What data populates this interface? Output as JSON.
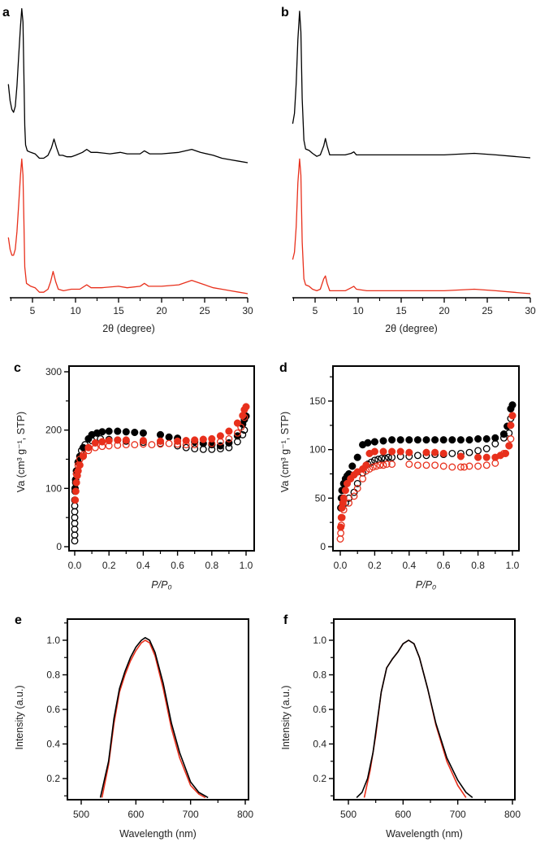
{
  "colors": {
    "black_series": "#000000",
    "red_series": "#e8301c"
  },
  "chart_data": [
    {
      "panel": "a",
      "type": "line",
      "xlabel": "2θ (degree)",
      "ylabel": "",
      "xlim": [
        2.2,
        30
      ],
      "xticks": [
        5,
        10,
        15,
        20,
        25,
        30
      ],
      "yaxis": "none (stacked, a.u.)",
      "series": [
        {
          "color": "#000000",
          "x": [
            2.2,
            2.4,
            2.6,
            2.8,
            3.0,
            3.2,
            3.4,
            3.6,
            3.75,
            3.9,
            4.0,
            4.1,
            4.2,
            4.4,
            4.8,
            5.3,
            5.8,
            6.3,
            6.8,
            7.2,
            7.5,
            7.8,
            8.1,
            8.5,
            9.0,
            9.5,
            10,
            10.8,
            11.3,
            11.8,
            12.5,
            14,
            15.2,
            16,
            17.5,
            18,
            18.6,
            20,
            22,
            23.5,
            24.5,
            26,
            27,
            28,
            29,
            30
          ],
          "y": [
            0.53,
            0.42,
            0.36,
            0.34,
            0.38,
            0.52,
            0.72,
            0.92,
            1.04,
            0.95,
            0.6,
            0.25,
            0.12,
            0.08,
            0.07,
            0.06,
            0.03,
            0.03,
            0.05,
            0.1,
            0.16,
            0.1,
            0.05,
            0.05,
            0.04,
            0.04,
            0.05,
            0.07,
            0.09,
            0.07,
            0.07,
            0.06,
            0.07,
            0.06,
            0.06,
            0.08,
            0.06,
            0.06,
            0.07,
            0.09,
            0.07,
            0.05,
            0.03,
            0.02,
            0.01,
            0
          ]
        },
        {
          "color": "#e8301c",
          "x": [
            2.2,
            2.4,
            2.6,
            2.8,
            3.0,
            3.2,
            3.4,
            3.6,
            3.75,
            3.9,
            4.0,
            4.1,
            4.3,
            4.8,
            5.3,
            5.8,
            6.3,
            6.8,
            7.1,
            7.4,
            7.7,
            8.0,
            8.6,
            9.5,
            10.5,
            11.3,
            11.8,
            13,
            15,
            16,
            17.5,
            18,
            18.5,
            20,
            22,
            23.5,
            24.5,
            26,
            27,
            28,
            29,
            30
          ],
          "y": [
            0.38,
            0.3,
            0.26,
            0.26,
            0.3,
            0.42,
            0.6,
            0.8,
            0.91,
            0.8,
            0.5,
            0.18,
            0.07,
            0.05,
            0.04,
            0.01,
            0.01,
            0.03,
            0.08,
            0.15,
            0.08,
            0.03,
            0.02,
            0.03,
            0.03,
            0.06,
            0.04,
            0.04,
            0.05,
            0.04,
            0.05,
            0.07,
            0.05,
            0.05,
            0.06,
            0.09,
            0.07,
            0.04,
            0.03,
            0.02,
            0.01,
            0
          ]
        }
      ]
    },
    {
      "panel": "b",
      "type": "line",
      "xlabel": "2θ (degree)",
      "ylabel": "",
      "xlim": [
        2.3,
        30
      ],
      "xticks": [
        5,
        10,
        15,
        20,
        25,
        30
      ],
      "yaxis": "none (stacked, a.u.)",
      "series": [
        {
          "color": "#000000",
          "x": [
            2.4,
            2.6,
            2.8,
            3.0,
            3.2,
            3.35,
            3.5,
            3.7,
            3.9,
            4.3,
            4.7,
            5.2,
            5.6,
            6.0,
            6.2,
            6.4,
            6.7,
            7.5,
            8.5,
            9.2,
            9.5,
            9.8,
            11,
            15,
            20,
            23.5,
            26,
            28,
            30
          ],
          "y": [
            0.23,
            0.3,
            0.5,
            0.8,
            0.99,
            0.85,
            0.4,
            0.12,
            0.06,
            0.05,
            0.03,
            0.01,
            0.02,
            0.08,
            0.13,
            0.08,
            0.02,
            0.02,
            0.02,
            0.03,
            0.04,
            0.02,
            0.02,
            0.02,
            0.02,
            0.03,
            0.02,
            0.01,
            0
          ]
        },
        {
          "color": "#e8301c",
          "x": [
            2.4,
            2.6,
            2.8,
            3.0,
            3.2,
            3.35,
            3.5,
            3.7,
            3.9,
            4.3,
            4.7,
            5.2,
            5.6,
            6.0,
            6.2,
            6.4,
            6.7,
            7.5,
            8.5,
            9.2,
            9.5,
            9.8,
            11,
            15,
            20,
            23.5,
            26,
            28,
            30
          ],
          "y": [
            0.23,
            0.28,
            0.45,
            0.75,
            0.91,
            0.8,
            0.35,
            0.1,
            0.06,
            0.05,
            0.03,
            0.02,
            0.03,
            0.1,
            0.12,
            0.07,
            0.02,
            0.02,
            0.02,
            0.04,
            0.05,
            0.03,
            0.02,
            0.02,
            0.02,
            0.03,
            0.02,
            0.01,
            0
          ]
        }
      ]
    },
    {
      "panel": "c",
      "type": "scatter",
      "xlabel": "P/P₀",
      "ylabel": "Va (cm³ g⁻¹, STP)",
      "xlim": [
        -0.02,
        1.03
      ],
      "ylim": [
        0,
        300
      ],
      "xticks": [
        "0.0",
        "0.2",
        "0.4",
        "0.6",
        "0.8",
        "1.0"
      ],
      "yticks": [
        "0",
        "100",
        "200",
        "300"
      ],
      "series": [
        {
          "color": "#000000",
          "marker": "filled",
          "x": [
            0.002,
            0.005,
            0.01,
            0.02,
            0.03,
            0.05,
            0.08,
            0.1,
            0.13,
            0.16,
            0.2,
            0.25,
            0.3,
            0.35,
            0.4,
            0.5,
            0.55,
            0.6,
            0.7,
            0.75,
            0.8,
            0.85,
            0.9,
            0.95,
            0.98,
            0.99,
            1.0
          ],
          "y": [
            100,
            115,
            130,
            145,
            155,
            170,
            185,
            192,
            195,
            197,
            198,
            198,
            197,
            196,
            195,
            192,
            188,
            186,
            180,
            177,
            175,
            173,
            178,
            190,
            210,
            218,
            224
          ]
        },
        {
          "color": "#000000",
          "marker": "open",
          "x": [
            0,
            0,
            0,
            0,
            0,
            0,
            0,
            0,
            0.002,
            0.005,
            0.01,
            0.02,
            0.04,
            0.06,
            0.1,
            0.15,
            0.2,
            0.25,
            0.3,
            0.4,
            0.5,
            0.6,
            0.65,
            0.7,
            0.75,
            0.8,
            0.85,
            0.9,
            0.95,
            0.98,
            0.99
          ],
          "y": [
            10,
            20,
            30,
            40,
            50,
            60,
            70,
            80,
            95,
            110,
            125,
            145,
            165,
            175,
            182,
            185,
            184,
            183,
            181,
            179,
            177,
            173,
            170,
            168,
            167,
            167,
            168,
            170,
            180,
            192,
            200
          ]
        },
        {
          "color": "#e8301c",
          "marker": "filled",
          "x": [
            0.003,
            0.006,
            0.01,
            0.015,
            0.02,
            0.03,
            0.05,
            0.08,
            0.12,
            0.16,
            0.2,
            0.25,
            0.3,
            0.4,
            0.5,
            0.6,
            0.65,
            0.7,
            0.75,
            0.8,
            0.85,
            0.9,
            0.95,
            0.98,
            0.99,
            1.0
          ],
          "y": [
            80,
            95,
            110,
            122,
            130,
            140,
            155,
            170,
            178,
            180,
            182,
            183,
            183,
            182,
            181,
            181,
            182,
            183,
            184,
            185,
            190,
            198,
            212,
            225,
            235,
            240
          ]
        },
        {
          "color": "#e8301c",
          "marker": "open",
          "x": [
            0.01,
            0.02,
            0.03,
            0.05,
            0.08,
            0.12,
            0.16,
            0.2,
            0.25,
            0.3,
            0.35,
            0.4,
            0.45,
            0.5,
            0.55,
            0.6,
            0.65,
            0.7,
            0.8,
            0.85,
            0.9,
            0.95,
            0.97,
            0.99
          ],
          "y": [
            125,
            140,
            150,
            158,
            165,
            170,
            172,
            173,
            174,
            175,
            175,
            176,
            175,
            176,
            177,
            176,
            175,
            175,
            177,
            180,
            185,
            195,
            205,
            222
          ]
        }
      ]
    },
    {
      "panel": "d",
      "type": "scatter",
      "xlabel": "P/P₀",
      "ylabel": "Va (cm³ g⁻¹, STP)",
      "xlim": [
        -0.02,
        1.03
      ],
      "ylim": [
        0,
        186
      ],
      "xticks": [
        "0.0",
        "0.2",
        "0.4",
        "0.6",
        "0.8",
        "1.0"
      ],
      "yticks": [
        "0",
        "50",
        "100",
        "150"
      ],
      "series": [
        {
          "color": "#000000",
          "marker": "filled",
          "x": [
            0.003,
            0.006,
            0.01,
            0.02,
            0.03,
            0.04,
            0.05,
            0.07,
            0.1,
            0.13,
            0.16,
            0.2,
            0.25,
            0.3,
            0.35,
            0.4,
            0.45,
            0.5,
            0.55,
            0.6,
            0.65,
            0.7,
            0.75,
            0.8,
            0.85,
            0.9,
            0.95,
            0.97,
            0.99,
            1.0
          ],
          "y": [
            40,
            50,
            58,
            65,
            70,
            73,
            75,
            83,
            92,
            105,
            107,
            108,
            109,
            110,
            110,
            110,
            110,
            110,
            110,
            110,
            110,
            110,
            110,
            111,
            111,
            112,
            116,
            124,
            142,
            146
          ]
        },
        {
          "color": "#000000",
          "marker": "open",
          "x": [
            0.03,
            0.05,
            0.08,
            0.1,
            0.13,
            0.16,
            0.18,
            0.2,
            0.22,
            0.24,
            0.26,
            0.28,
            0.3,
            0.35,
            0.4,
            0.45,
            0.5,
            0.55,
            0.6,
            0.65,
            0.7,
            0.75,
            0.8,
            0.85,
            0.9,
            0.95,
            0.98,
            0.99
          ],
          "y": [
            45,
            50,
            56,
            65,
            76,
            85,
            87,
            89,
            90,
            91,
            91,
            92,
            92,
            93,
            93,
            94,
            94,
            95,
            95,
            96,
            96,
            97,
            99,
            101,
            106,
            112,
            117,
            132
          ]
        },
        {
          "color": "#e8301c",
          "marker": "filled",
          "x": [
            0.003,
            0.006,
            0.01,
            0.015,
            0.02,
            0.03,
            0.04,
            0.06,
            0.08,
            0.1,
            0.13,
            0.15,
            0.17,
            0.2,
            0.25,
            0.3,
            0.35,
            0.4,
            0.5,
            0.55,
            0.6,
            0.7,
            0.8,
            0.85,
            0.9,
            0.93,
            0.96,
            0.98,
            0.99,
            1.0
          ],
          "y": [
            20,
            30,
            40,
            45,
            50,
            58,
            65,
            70,
            74,
            77,
            80,
            84,
            96,
            98,
            98,
            98,
            98,
            97,
            97,
            97,
            96,
            93,
            92,
            92,
            92,
            94,
            96,
            104,
            125,
            135
          ]
        },
        {
          "color": "#e8301c",
          "marker": "open",
          "x": [
            0,
            0.003,
            0.006,
            0.01,
            0.02,
            0.05,
            0.08,
            0.1,
            0.13,
            0.15,
            0.17,
            0.19,
            0.21,
            0.23,
            0.25,
            0.27,
            0.3,
            0.4,
            0.45,
            0.5,
            0.55,
            0.6,
            0.65,
            0.7,
            0.72,
            0.75,
            0.8,
            0.85,
            0.9,
            0.95,
            0.98,
            0.99
          ],
          "y": [
            8,
            14,
            22,
            30,
            38,
            45,
            52,
            60,
            70,
            78,
            80,
            82,
            83,
            84,
            84,
            85,
            85,
            85,
            84,
            84,
            84,
            83,
            82,
            82,
            82,
            83,
            83,
            84,
            86,
            96,
            104,
            111
          ]
        }
      ]
    },
    {
      "panel": "e",
      "type": "line",
      "xlabel": "Wavelength (nm)",
      "ylabel": "Intensity (a.u.)",
      "xlim": [
        475,
        810
      ],
      "ylim": [
        0.08,
        1.12
      ],
      "xticks": [
        "500",
        "600",
        "700",
        "800"
      ],
      "yticks": [
        "0.2",
        "0.4",
        "0.6",
        "0.8",
        "1.0"
      ],
      "series": [
        {
          "color": "#e8301c",
          "x": [
            538,
            550,
            560,
            570,
            580,
            590,
            600,
            610,
            617,
            625,
            635,
            650,
            665,
            680,
            700,
            715,
            727
          ],
          "y": [
            0.09,
            0.28,
            0.52,
            0.7,
            0.8,
            0.88,
            0.94,
            0.985,
            1.0,
            0.985,
            0.91,
            0.72,
            0.49,
            0.32,
            0.16,
            0.11,
            0.09
          ]
        },
        {
          "color": "#000000",
          "x": [
            535,
            550,
            560,
            570,
            580,
            590,
            600,
            610,
            617,
            625,
            635,
            650,
            665,
            680,
            700,
            715,
            732
          ],
          "y": [
            0.09,
            0.3,
            0.55,
            0.72,
            0.82,
            0.9,
            0.96,
            1.0,
            1.015,
            1.0,
            0.93,
            0.75,
            0.52,
            0.35,
            0.18,
            0.12,
            0.09
          ]
        }
      ]
    },
    {
      "panel": "f",
      "type": "line",
      "xlabel": "Wavelength (nm)",
      "ylabel": "Intensity (a.u.)",
      "xlim": [
        475,
        810
      ],
      "ylim": [
        0.08,
        1.12
      ],
      "xticks": [
        "500",
        "600",
        "700",
        "800"
      ],
      "yticks": [
        "0.2",
        "0.4",
        "0.6",
        "0.8",
        "1.0"
      ],
      "series": [
        {
          "color": "#e8301c",
          "x": [
            529,
            540,
            550,
            560,
            570,
            580,
            590,
            600,
            610,
            620,
            630,
            645,
            660,
            680,
            700,
            715
          ],
          "y": [
            0.09,
            0.25,
            0.45,
            0.7,
            0.84,
            0.89,
            0.93,
            0.98,
            1.0,
            0.98,
            0.9,
            0.72,
            0.51,
            0.3,
            0.16,
            0.09
          ]
        },
        {
          "color": "#000000",
          "x": [
            515,
            525,
            535,
            545,
            560,
            570,
            580,
            590,
            600,
            610,
            620,
            630,
            645,
            660,
            680,
            700,
            715,
            727
          ],
          "y": [
            0.09,
            0.12,
            0.2,
            0.35,
            0.7,
            0.84,
            0.89,
            0.93,
            0.98,
            1.0,
            0.98,
            0.9,
            0.72,
            0.52,
            0.32,
            0.19,
            0.12,
            0.09
          ]
        }
      ]
    }
  ]
}
